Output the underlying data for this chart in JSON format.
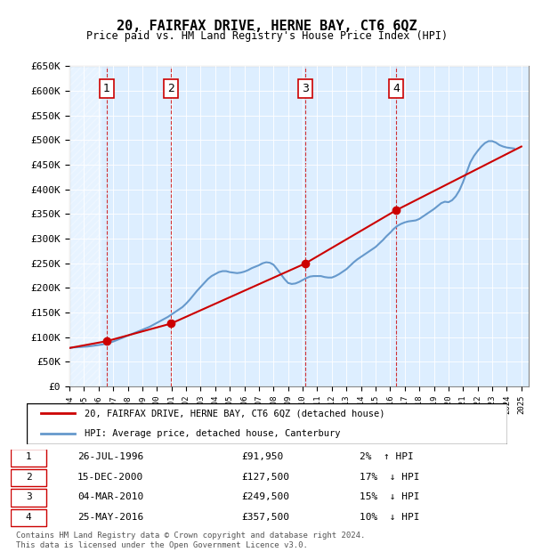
{
  "title": "20, FAIRFAX DRIVE, HERNE BAY, CT6 6QZ",
  "subtitle": "Price paid vs. HM Land Registry's House Price Index (HPI)",
  "ylabel_ticks": [
    "£0",
    "£50K",
    "£100K",
    "£150K",
    "£200K",
    "£250K",
    "£300K",
    "£350K",
    "£400K",
    "£450K",
    "£500K",
    "£550K",
    "£600K",
    "£650K"
  ],
  "ytick_values": [
    0,
    50000,
    100000,
    150000,
    200000,
    250000,
    300000,
    350000,
    400000,
    450000,
    500000,
    550000,
    600000,
    650000
  ],
  "hpi_color": "#6699cc",
  "price_color": "#cc0000",
  "background_plot": "#ddeeff",
  "background_hatch": "#cccccc",
  "transactions": [
    {
      "label": 1,
      "date": "26-JUL-1996",
      "year": 1996.57,
      "price": 91950,
      "pct": "2%",
      "dir": "↑"
    },
    {
      "label": 2,
      "date": "15-DEC-2000",
      "year": 2000.96,
      "price": 127500,
      "pct": "17%",
      "dir": "↓"
    },
    {
      "label": 3,
      "date": "04-MAR-2010",
      "year": 2010.17,
      "price": 249500,
      "pct": "15%",
      "dir": "↓"
    },
    {
      "label": 4,
      "date": "25-MAY-2016",
      "year": 2016.4,
      "price": 357500,
      "pct": "10%",
      "dir": "↓"
    }
  ],
  "xmin": 1994,
  "xmax": 2025.5,
  "ymin": 0,
  "ymax": 650000,
  "legend_line1": "20, FAIRFAX DRIVE, HERNE BAY, CT6 6QZ (detached house)",
  "legend_line2": "HPI: Average price, detached house, Canterbury",
  "footnote": "Contains HM Land Registry data © Crown copyright and database right 2024.\nThis data is licensed under the Open Government Licence v3.0.",
  "hpi_data_x": [
    1994,
    1994.25,
    1994.5,
    1994.75,
    1995,
    1995.25,
    1995.5,
    1995.75,
    1996,
    1996.25,
    1996.5,
    1996.75,
    1997,
    1997.25,
    1997.5,
    1997.75,
    1998,
    1998.25,
    1998.5,
    1998.75,
    1999,
    1999.25,
    1999.5,
    1999.75,
    2000,
    2000.25,
    2000.5,
    2000.75,
    2001,
    2001.25,
    2001.5,
    2001.75,
    2002,
    2002.25,
    2002.5,
    2002.75,
    2003,
    2003.25,
    2003.5,
    2003.75,
    2004,
    2004.25,
    2004.5,
    2004.75,
    2005,
    2005.25,
    2005.5,
    2005.75,
    2006,
    2006.25,
    2006.5,
    2006.75,
    2007,
    2007.25,
    2007.5,
    2007.75,
    2008,
    2008.25,
    2008.5,
    2008.75,
    2009,
    2009.25,
    2009.5,
    2009.75,
    2010,
    2010.25,
    2010.5,
    2010.75,
    2011,
    2011.25,
    2011.5,
    2011.75,
    2012,
    2012.25,
    2012.5,
    2012.75,
    2013,
    2013.25,
    2013.5,
    2013.75,
    2014,
    2014.25,
    2014.5,
    2014.75,
    2015,
    2015.25,
    2015.5,
    2015.75,
    2016,
    2016.25,
    2016.5,
    2016.75,
    2017,
    2017.25,
    2017.5,
    2017.75,
    2018,
    2018.25,
    2018.5,
    2018.75,
    2019,
    2019.25,
    2019.5,
    2019.75,
    2020,
    2020.25,
    2020.5,
    2020.75,
    2021,
    2021.25,
    2021.5,
    2021.75,
    2022,
    2022.25,
    2022.5,
    2022.75,
    2023,
    2023.25,
    2023.5,
    2023.75,
    2024,
    2024.25,
    2024.5
  ],
  "hpi_data_y": [
    78000,
    79000,
    79500,
    80000,
    80500,
    81000,
    82000,
    83000,
    84000,
    85000,
    87000,
    89000,
    91000,
    94000,
    97000,
    100000,
    103000,
    106000,
    109000,
    112000,
    115000,
    118000,
    121000,
    125000,
    129000,
    133000,
    137000,
    141000,
    146000,
    151000,
    156000,
    161000,
    168000,
    176000,
    185000,
    194000,
    202000,
    210000,
    218000,
    224000,
    228000,
    232000,
    234000,
    234000,
    232000,
    231000,
    230000,
    231000,
    233000,
    236000,
    240000,
    243000,
    246000,
    250000,
    252000,
    251000,
    247000,
    238000,
    228000,
    218000,
    210000,
    208000,
    209000,
    212000,
    216000,
    220000,
    223000,
    224000,
    224000,
    224000,
    222000,
    221000,
    221000,
    224000,
    228000,
    233000,
    238000,
    245000,
    252000,
    258000,
    263000,
    268000,
    273000,
    278000,
    283000,
    290000,
    297000,
    305000,
    312000,
    320000,
    326000,
    330000,
    333000,
    335000,
    336000,
    337000,
    340000,
    345000,
    350000,
    355000,
    360000,
    366000,
    372000,
    375000,
    374000,
    378000,
    386000,
    398000,
    415000,
    435000,
    455000,
    468000,
    478000,
    487000,
    494000,
    498000,
    498000,
    495000,
    490000,
    487000,
    485000,
    484000,
    483000
  ],
  "price_data_x": [
    1994,
    1996.57,
    2000.96,
    2010.17,
    2016.4,
    2025
  ],
  "price_data_y": [
    78000,
    91950,
    127500,
    249500,
    357500,
    487000
  ]
}
